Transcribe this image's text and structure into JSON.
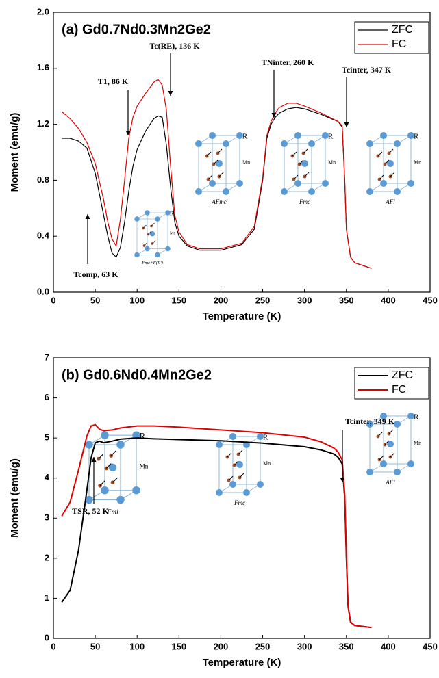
{
  "chart_data": [
    {
      "type": "line",
      "title": "(a) Gd0.7Nd0.3Mn2Ge2",
      "x_label": "Temperature (K)",
      "y_label": "Moment (emu/g)",
      "x": [
        10,
        20,
        30,
        40,
        50,
        60,
        65,
        70,
        75,
        80,
        85,
        90,
        95,
        100,
        110,
        120,
        125,
        130,
        135,
        140,
        145,
        150,
        160,
        175,
        200,
        225,
        240,
        250,
        255,
        260,
        265,
        270,
        280,
        290,
        300,
        320,
        340,
        345,
        348,
        350,
        355,
        360,
        380
      ],
      "series": [
        {
          "name": "ZFC",
          "color": "#000000",
          "values": [
            1.1,
            1.1,
            1.08,
            1.03,
            0.85,
            0.55,
            0.4,
            0.28,
            0.25,
            0.32,
            0.5,
            0.72,
            0.9,
            1.02,
            1.15,
            1.24,
            1.26,
            1.25,
            1.05,
            0.75,
            0.5,
            0.4,
            0.33,
            0.3,
            0.3,
            0.34,
            0.45,
            0.8,
            1.1,
            1.2,
            1.25,
            1.28,
            1.31,
            1.32,
            1.31,
            1.27,
            1.22,
            1.18,
            0.8,
            0.45,
            0.25,
            0.21,
            0.17
          ]
        },
        {
          "name": "FC",
          "color": "#e00000",
          "values": [
            1.29,
            1.24,
            1.17,
            1.07,
            0.92,
            0.66,
            0.5,
            0.38,
            0.33,
            0.52,
            0.8,
            1.1,
            1.25,
            1.33,
            1.42,
            1.5,
            1.52,
            1.48,
            1.3,
            0.9,
            0.55,
            0.43,
            0.34,
            0.31,
            0.31,
            0.35,
            0.47,
            0.82,
            1.12,
            1.22,
            1.28,
            1.32,
            1.35,
            1.35,
            1.33,
            1.28,
            1.22,
            1.19,
            0.8,
            0.45,
            0.25,
            0.21,
            0.17
          ]
        }
      ],
      "xlim": [
        0,
        450
      ],
      "xticks": [
        0,
        50,
        100,
        150,
        200,
        250,
        300,
        350,
        400,
        450
      ],
      "ylim": [
        0,
        2
      ],
      "yticks": [
        {
          "value": 0,
          "label": "0.0"
        },
        0.4,
        0.8,
        1.2,
        1.6,
        {
          "value": 2,
          "label": "2.0"
        }
      ],
      "legend": "upper right",
      "line_width": 1.2,
      "annotations": [
        "Tc(RE), 136 K",
        "T1, 86 K",
        "TNinter, 260 K",
        "Tcinter, 347 K",
        "Tcomp, 63 K"
      ],
      "insets": [
        {
          "caption": "Fmc+F(R')",
          "labels": [
            "R",
            "Mn"
          ]
        },
        {
          "caption": "AFmc",
          "labels": [
            "R",
            "Mn"
          ]
        },
        {
          "caption": "Fmc",
          "labels": [
            "R",
            "Mn"
          ]
        },
        {
          "caption": "AFl",
          "labels": [
            "R",
            "Mn"
          ]
        }
      ]
    },
    {
      "type": "line",
      "title": "(b) Gd0.6Nd0.4Mn2Ge2",
      "x_label": "Temperature (K)",
      "y_label": "Moment (emu/g)",
      "x": [
        10,
        20,
        30,
        40,
        45,
        50,
        55,
        60,
        70,
        80,
        100,
        120,
        150,
        200,
        250,
        300,
        320,
        335,
        340,
        345,
        348,
        350,
        352,
        355,
        360,
        380
      ],
      "series": [
        {
          "name": "ZFC",
          "color": "#000000",
          "values": [
            0.9,
            1.2,
            2.2,
            3.7,
            4.5,
            4.88,
            4.92,
            4.88,
            4.92,
            4.97,
            5.0,
            4.98,
            4.96,
            4.93,
            4.87,
            4.78,
            4.7,
            4.6,
            4.52,
            4.35,
            3.5,
            2.0,
            0.8,
            0.4,
            0.32,
            0.27
          ]
        },
        {
          "name": "FC",
          "color": "#e00000",
          "values": [
            3.05,
            3.4,
            4.2,
            5.05,
            5.3,
            5.33,
            5.22,
            5.18,
            5.2,
            5.25,
            5.3,
            5.3,
            5.27,
            5.2,
            5.13,
            5.02,
            4.9,
            4.75,
            4.65,
            4.45,
            3.6,
            2.1,
            0.8,
            0.4,
            0.32,
            0.27
          ]
        }
      ],
      "xlim": [
        0,
        450
      ],
      "xticks": [
        0,
        50,
        100,
        150,
        200,
        250,
        300,
        350,
        400,
        450
      ],
      "ylim": [
        0,
        7
      ],
      "yticks": [
        0,
        1,
        2,
        3,
        4,
        5,
        6,
        7
      ],
      "legend": "upper right",
      "line_width": 2,
      "annotations": [
        "Tcinter, 349 K",
        "TSR, 52 K"
      ],
      "insets": [
        {
          "caption": "Fmi",
          "labels": [
            "R",
            "Mn"
          ]
        },
        {
          "caption": "Fmc",
          "labels": [
            "R",
            "Mn"
          ]
        },
        {
          "caption": "AFl",
          "labels": [
            "R",
            "Mn"
          ]
        }
      ]
    }
  ]
}
